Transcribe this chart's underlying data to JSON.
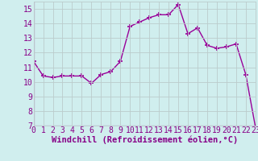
{
  "x": [
    0,
    1,
    2,
    3,
    4,
    5,
    6,
    7,
    8,
    9,
    10,
    11,
    12,
    13,
    14,
    15,
    16,
    17,
    18,
    19,
    20,
    21,
    22,
    23
  ],
  "y": [
    11.4,
    10.4,
    10.3,
    10.4,
    10.4,
    10.4,
    9.9,
    10.5,
    10.7,
    11.4,
    13.8,
    14.1,
    14.4,
    14.6,
    14.6,
    15.3,
    13.3,
    13.7,
    12.5,
    12.3,
    12.4,
    12.6,
    10.5,
    6.9
  ],
  "line_color": "#990099",
  "marker": "+",
  "marker_size": 4,
  "marker_linewidth": 1.2,
  "xlabel": "Windchill (Refroidissement éolien,°C)",
  "ylabel": "",
  "title": "",
  "xlim": [
    0,
    23
  ],
  "ylim": [
    7,
    15.5
  ],
  "yticks": [
    7,
    8,
    9,
    10,
    11,
    12,
    13,
    14,
    15
  ],
  "xticks": [
    0,
    1,
    2,
    3,
    4,
    5,
    6,
    7,
    8,
    9,
    10,
    11,
    12,
    13,
    14,
    15,
    16,
    17,
    18,
    19,
    20,
    21,
    22,
    23
  ],
  "background_color": "#d0eeee",
  "grid_color": "#bbcccc",
  "tick_label_color": "#880088",
  "xlabel_color": "#880088",
  "xlabel_fontsize": 7.5,
  "tick_fontsize": 7.0,
  "linewidth": 1.0
}
